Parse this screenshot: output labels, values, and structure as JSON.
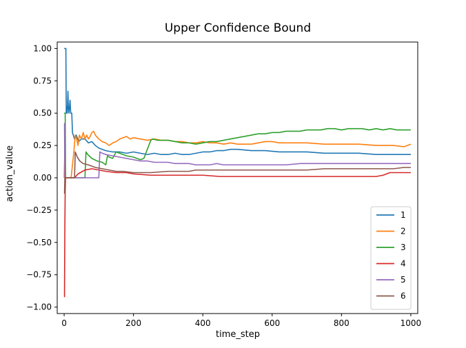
{
  "chart_data": {
    "type": "line",
    "title": "Upper Confidence Bound",
    "xlabel": "time_step",
    "ylabel": "action_value",
    "xlim": [
      -20,
      1020
    ],
    "ylim": [
      -1.05,
      1.05
    ],
    "x_ticks": [
      0,
      200,
      400,
      600,
      800,
      1000
    ],
    "x_tick_labels": [
      "0",
      "200",
      "400",
      "600",
      "800",
      "1000"
    ],
    "y_ticks": [
      -1.0,
      -0.75,
      -0.5,
      -0.25,
      0.0,
      0.25,
      0.5,
      0.75,
      1.0
    ],
    "y_tick_labels": [
      "−1.00",
      "−0.75",
      "−0.50",
      "−0.25",
      "0.00",
      "0.25",
      "0.50",
      "0.75",
      "1.00"
    ],
    "grid": false,
    "legend_position": "lower-right",
    "series": [
      {
        "name": "1",
        "color": "#1f77b4",
        "points": [
          [
            0,
            1.0
          ],
          [
            5,
            1.0
          ],
          [
            6,
            0.5
          ],
          [
            8,
            0.55
          ],
          [
            9,
            0.5
          ],
          [
            11,
            0.67
          ],
          [
            12,
            0.55
          ],
          [
            14,
            0.5
          ],
          [
            17,
            0.6
          ],
          [
            19,
            0.5
          ],
          [
            22,
            0.5
          ],
          [
            24,
            0.35
          ],
          [
            30,
            0.3
          ],
          [
            35,
            0.33
          ],
          [
            42,
            0.28
          ],
          [
            50,
            0.3
          ],
          [
            60,
            0.3
          ],
          [
            70,
            0.27
          ],
          [
            80,
            0.28
          ],
          [
            90,
            0.25
          ],
          [
            100,
            0.23
          ],
          [
            120,
            0.21
          ],
          [
            140,
            0.2
          ],
          [
            160,
            0.2
          ],
          [
            180,
            0.19
          ],
          [
            200,
            0.2
          ],
          [
            220,
            0.19
          ],
          [
            240,
            0.18
          ],
          [
            260,
            0.19
          ],
          [
            280,
            0.18
          ],
          [
            300,
            0.18
          ],
          [
            320,
            0.19
          ],
          [
            340,
            0.18
          ],
          [
            360,
            0.18
          ],
          [
            380,
            0.19
          ],
          [
            400,
            0.2
          ],
          [
            420,
            0.2
          ],
          [
            440,
            0.21
          ],
          [
            460,
            0.21
          ],
          [
            480,
            0.22
          ],
          [
            500,
            0.22
          ],
          [
            540,
            0.21
          ],
          [
            580,
            0.21
          ],
          [
            620,
            0.2
          ],
          [
            660,
            0.2
          ],
          [
            700,
            0.2
          ],
          [
            750,
            0.19
          ],
          [
            800,
            0.19
          ],
          [
            850,
            0.19
          ],
          [
            900,
            0.18
          ],
          [
            950,
            0.18
          ],
          [
            1000,
            0.18
          ]
        ]
      },
      {
        "name": "2",
        "color": "#ff7f0e",
        "points": [
          [
            0,
            0.0
          ],
          [
            2,
            0.22
          ],
          [
            4,
            0.0
          ],
          [
            20,
            0.0
          ],
          [
            28,
            0.2
          ],
          [
            32,
            0.33
          ],
          [
            36,
            0.3
          ],
          [
            40,
            0.25
          ],
          [
            44,
            0.33
          ],
          [
            50,
            0.3
          ],
          [
            55,
            0.35
          ],
          [
            60,
            0.3
          ],
          [
            65,
            0.33
          ],
          [
            70,
            0.3
          ],
          [
            75,
            0.32
          ],
          [
            80,
            0.35
          ],
          [
            85,
            0.36
          ],
          [
            90,
            0.33
          ],
          [
            100,
            0.3
          ],
          [
            110,
            0.28
          ],
          [
            120,
            0.27
          ],
          [
            130,
            0.25
          ],
          [
            140,
            0.27
          ],
          [
            150,
            0.28
          ],
          [
            160,
            0.3
          ],
          [
            170,
            0.31
          ],
          [
            180,
            0.32
          ],
          [
            190,
            0.3
          ],
          [
            200,
            0.31
          ],
          [
            220,
            0.3
          ],
          [
            240,
            0.29
          ],
          [
            260,
            0.3
          ],
          [
            280,
            0.29
          ],
          [
            300,
            0.29
          ],
          [
            320,
            0.28
          ],
          [
            340,
            0.28
          ],
          [
            360,
            0.27
          ],
          [
            380,
            0.27
          ],
          [
            400,
            0.28
          ],
          [
            420,
            0.27
          ],
          [
            440,
            0.27
          ],
          [
            460,
            0.26
          ],
          [
            480,
            0.27
          ],
          [
            500,
            0.26
          ],
          [
            520,
            0.26
          ],
          [
            540,
            0.26
          ],
          [
            560,
            0.27
          ],
          [
            580,
            0.28
          ],
          [
            600,
            0.28
          ],
          [
            620,
            0.27
          ],
          [
            660,
            0.27
          ],
          [
            700,
            0.27
          ],
          [
            750,
            0.26
          ],
          [
            800,
            0.26
          ],
          [
            850,
            0.26
          ],
          [
            900,
            0.25
          ],
          [
            950,
            0.25
          ],
          [
            980,
            0.24
          ],
          [
            990,
            0.25
          ],
          [
            1000,
            0.26
          ]
        ]
      },
      {
        "name": "3",
        "color": "#2ca02c",
        "points": [
          [
            0,
            0.5
          ],
          [
            3,
            0.5
          ],
          [
            4,
            0.0
          ],
          [
            60,
            0.0
          ],
          [
            63,
            0.2
          ],
          [
            68,
            0.18
          ],
          [
            80,
            0.15
          ],
          [
            95,
            0.13
          ],
          [
            110,
            0.12
          ],
          [
            120,
            0.1
          ],
          [
            125,
            0.17
          ],
          [
            130,
            0.16
          ],
          [
            140,
            0.15
          ],
          [
            150,
            0.2
          ],
          [
            160,
            0.19
          ],
          [
            170,
            0.18
          ],
          [
            180,
            0.17
          ],
          [
            200,
            0.16
          ],
          [
            210,
            0.15
          ],
          [
            220,
            0.14
          ],
          [
            230,
            0.15
          ],
          [
            240,
            0.22
          ],
          [
            250,
            0.29
          ],
          [
            255,
            0.3
          ],
          [
            270,
            0.29
          ],
          [
            300,
            0.29
          ],
          [
            320,
            0.28
          ],
          [
            340,
            0.27
          ],
          [
            360,
            0.27
          ],
          [
            380,
            0.26
          ],
          [
            400,
            0.27
          ],
          [
            420,
            0.28
          ],
          [
            440,
            0.28
          ],
          [
            460,
            0.29
          ],
          [
            480,
            0.3
          ],
          [
            500,
            0.31
          ],
          [
            520,
            0.32
          ],
          [
            540,
            0.33
          ],
          [
            560,
            0.34
          ],
          [
            580,
            0.34
          ],
          [
            600,
            0.35
          ],
          [
            620,
            0.35
          ],
          [
            640,
            0.36
          ],
          [
            660,
            0.36
          ],
          [
            680,
            0.36
          ],
          [
            700,
            0.37
          ],
          [
            720,
            0.37
          ],
          [
            740,
            0.37
          ],
          [
            760,
            0.38
          ],
          [
            780,
            0.38
          ],
          [
            800,
            0.37
          ],
          [
            820,
            0.38
          ],
          [
            840,
            0.38
          ],
          [
            860,
            0.38
          ],
          [
            880,
            0.37
          ],
          [
            900,
            0.38
          ],
          [
            920,
            0.37
          ],
          [
            940,
            0.38
          ],
          [
            960,
            0.37
          ],
          [
            980,
            0.37
          ],
          [
            1000,
            0.37
          ]
        ]
      },
      {
        "name": "4",
        "color": "#d62728",
        "points": [
          [
            0,
            -0.92
          ],
          [
            1,
            -0.92
          ],
          [
            2,
            -0.4
          ],
          [
            3,
            -0.1
          ],
          [
            4,
            0.0
          ],
          [
            30,
            0.0
          ],
          [
            40,
            0.03
          ],
          [
            60,
            0.06
          ],
          [
            80,
            0.07
          ],
          [
            100,
            0.06
          ],
          [
            120,
            0.05
          ],
          [
            150,
            0.04
          ],
          [
            180,
            0.04
          ],
          [
            200,
            0.03
          ],
          [
            250,
            0.02
          ],
          [
            300,
            0.02
          ],
          [
            350,
            0.02
          ],
          [
            400,
            0.02
          ],
          [
            450,
            0.01
          ],
          [
            500,
            0.01
          ],
          [
            550,
            0.01
          ],
          [
            600,
            0.01
          ],
          [
            650,
            0.01
          ],
          [
            700,
            0.01
          ],
          [
            750,
            0.01
          ],
          [
            800,
            0.01
          ],
          [
            850,
            0.01
          ],
          [
            900,
            0.01
          ],
          [
            920,
            0.02
          ],
          [
            930,
            0.03
          ],
          [
            940,
            0.04
          ],
          [
            950,
            0.04
          ],
          [
            1000,
            0.04
          ]
        ]
      },
      {
        "name": "5",
        "color": "#9467bd",
        "points": [
          [
            0,
            0.42
          ],
          [
            1,
            0.42
          ],
          [
            2,
            0.0
          ],
          [
            100,
            0.0
          ],
          [
            103,
            0.2
          ],
          [
            110,
            0.19
          ],
          [
            120,
            0.18
          ],
          [
            140,
            0.17
          ],
          [
            160,
            0.16
          ],
          [
            180,
            0.15
          ],
          [
            200,
            0.14
          ],
          [
            220,
            0.13
          ],
          [
            240,
            0.13
          ],
          [
            260,
            0.12
          ],
          [
            280,
            0.12
          ],
          [
            300,
            0.12
          ],
          [
            320,
            0.11
          ],
          [
            340,
            0.11
          ],
          [
            360,
            0.11
          ],
          [
            380,
            0.1
          ],
          [
            400,
            0.1
          ],
          [
            420,
            0.1
          ],
          [
            440,
            0.11
          ],
          [
            460,
            0.1
          ],
          [
            480,
            0.1
          ],
          [
            500,
            0.1
          ],
          [
            520,
            0.1
          ],
          [
            540,
            0.1
          ],
          [
            560,
            0.1
          ],
          [
            600,
            0.1
          ],
          [
            640,
            0.1
          ],
          [
            680,
            0.11
          ],
          [
            720,
            0.11
          ],
          [
            760,
            0.11
          ],
          [
            800,
            0.11
          ],
          [
            840,
            0.11
          ],
          [
            880,
            0.11
          ],
          [
            920,
            0.11
          ],
          [
            960,
            0.11
          ],
          [
            1000,
            0.11
          ]
        ]
      },
      {
        "name": "6",
        "color": "#8c564b",
        "points": [
          [
            0,
            -0.12
          ],
          [
            1,
            -0.12
          ],
          [
            2,
            0.0
          ],
          [
            30,
            0.0
          ],
          [
            32,
            0.2
          ],
          [
            38,
            0.16
          ],
          [
            45,
            0.13
          ],
          [
            55,
            0.11
          ],
          [
            70,
            0.1
          ],
          [
            90,
            0.08
          ],
          [
            110,
            0.07
          ],
          [
            130,
            0.06
          ],
          [
            150,
            0.05
          ],
          [
            170,
            0.05
          ],
          [
            200,
            0.04
          ],
          [
            250,
            0.04
          ],
          [
            300,
            0.05
          ],
          [
            330,
            0.05
          ],
          [
            360,
            0.05
          ],
          [
            380,
            0.06
          ],
          [
            400,
            0.06
          ],
          [
            420,
            0.06
          ],
          [
            440,
            0.06
          ],
          [
            460,
            0.06
          ],
          [
            480,
            0.06
          ],
          [
            500,
            0.06
          ],
          [
            550,
            0.06
          ],
          [
            600,
            0.06
          ],
          [
            650,
            0.06
          ],
          [
            700,
            0.06
          ],
          [
            750,
            0.07
          ],
          [
            800,
            0.07
          ],
          [
            850,
            0.07
          ],
          [
            900,
            0.07
          ],
          [
            950,
            0.07
          ],
          [
            980,
            0.08
          ],
          [
            1000,
            0.08
          ]
        ]
      }
    ]
  }
}
